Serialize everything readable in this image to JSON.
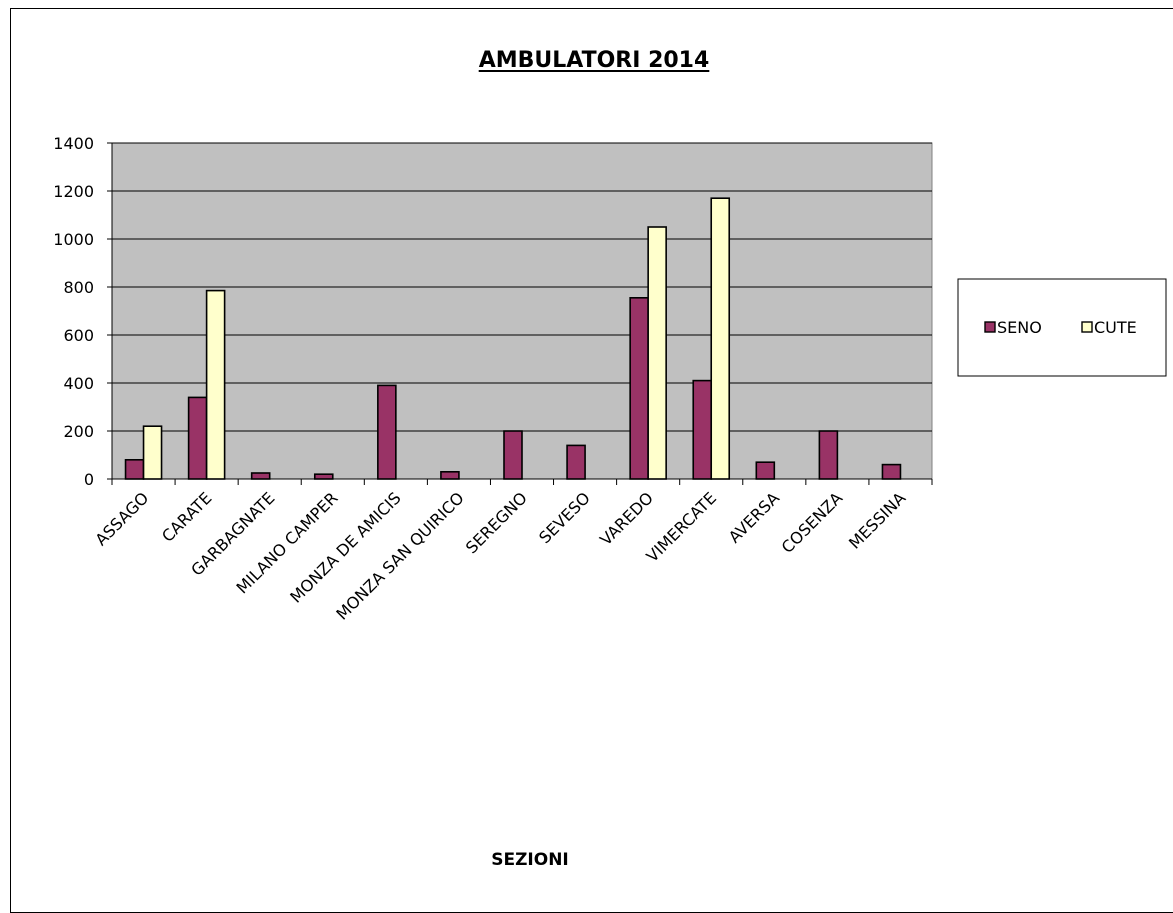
{
  "chart_data": {
    "type": "bar",
    "title": "AMBULATORI  2014",
    "xlabel": "SEZIONI",
    "ylabel": "",
    "ylim": [
      0,
      1400
    ],
    "yticks": [
      0,
      200,
      400,
      600,
      800,
      1000,
      1200,
      1400
    ],
    "categories": [
      "ASSAGO",
      "CARATE",
      "GARBAGNATE",
      "MILANO CAMPER",
      "MONZA DE AMICIS",
      "MONZA SAN QUIRICO",
      "SEREGNO",
      "SEVESO",
      "VAREDO",
      "VIMERCATE",
      "AVERSA",
      "COSENZA",
      "MESSINA"
    ],
    "series": [
      {
        "name": "SENO",
        "color": "#993366",
        "values": [
          80,
          340,
          25,
          20,
          390,
          30,
          200,
          140,
          755,
          410,
          70,
          200,
          60
        ]
      },
      {
        "name": "CUTE",
        "color": "#ffffcc",
        "values": [
          220,
          785,
          0,
          0,
          0,
          0,
          0,
          0,
          1050,
          1170,
          0,
          0,
          0
        ]
      }
    ],
    "grid": true,
    "plot_background": "#c0c0c0",
    "legend_position": "right"
  }
}
